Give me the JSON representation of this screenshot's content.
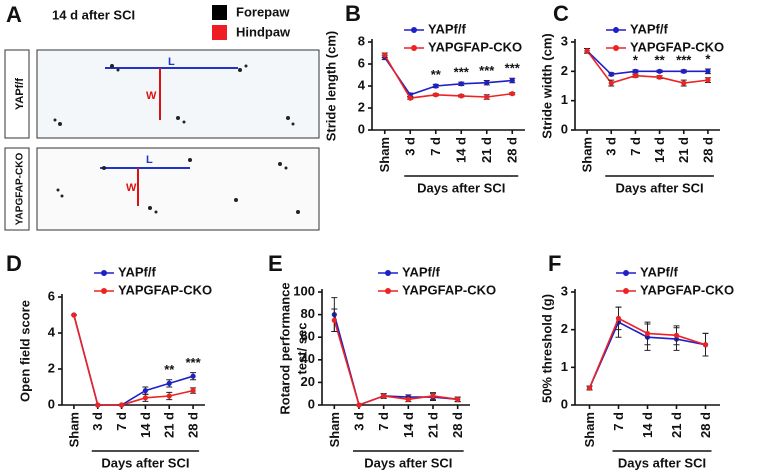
{
  "panel_a": {
    "panel_label": "A",
    "title": "14 d after SCI",
    "legend": [
      {
        "name": "Forepaw",
        "color": "#000000"
      },
      {
        "name": "Hindpaw",
        "color": "#ee1c24"
      }
    ],
    "rows": [
      {
        "label": "YAPf/f",
        "length_label": "L",
        "width_label": "W"
      },
      {
        "label": "YAPGFAP-CKO",
        "length_label": "L",
        "width_label": "W"
      }
    ]
  },
  "chart_data": [
    {
      "type": "line",
      "panel_label": "B",
      "ylabel": "Stride length (cm)",
      "xlabel": "Days after SCI",
      "categories": [
        "Sham",
        "3 d",
        "7 d",
        "14 d",
        "21 d",
        "28 d"
      ],
      "series": [
        {
          "name": "YAPf/f",
          "color": "#1f1fc8",
          "values": [
            6.6,
            3.2,
            4.0,
            4.2,
            4.3,
            4.5
          ],
          "errors": [
            0.2,
            0.15,
            0.15,
            0.15,
            0.2,
            0.2
          ]
        },
        {
          "name": "YAPGFAP-CKO",
          "color": "#ee2222",
          "values": [
            6.8,
            2.9,
            3.2,
            3.1,
            3.0,
            3.3
          ],
          "errors": [
            0.2,
            0.1,
            0.1,
            0.1,
            0.2,
            0.1
          ]
        }
      ],
      "ylim": [
        0,
        8
      ],
      "yticks": [
        0,
        2,
        4,
        6,
        8
      ],
      "annotations": [
        {
          "x": "7 d",
          "text": "**"
        },
        {
          "x": "14 d",
          "text": "***"
        },
        {
          "x": "21 d",
          "text": "***"
        },
        {
          "x": "28 d",
          "text": "***"
        }
      ]
    },
    {
      "type": "line",
      "panel_label": "C",
      "ylabel": "Stride width (cm)",
      "xlabel": "Days after SCI",
      "categories": [
        "Sham",
        "3 d",
        "7 d",
        "14 d",
        "21 d",
        "28 d"
      ],
      "series": [
        {
          "name": "YAPf/f",
          "color": "#1f1fc8",
          "values": [
            2.7,
            1.9,
            2.0,
            2.0,
            2.0,
            2.0
          ],
          "errors": [
            0.08,
            0.05,
            0.05,
            0.04,
            0.05,
            0.08
          ]
        },
        {
          "name": "YAPGFAP-CKO",
          "color": "#ee2222",
          "values": [
            2.7,
            1.6,
            1.85,
            1.8,
            1.6,
            1.7
          ],
          "errors": [
            0.08,
            0.1,
            0.05,
            0.05,
            0.1,
            0.08
          ]
        }
      ],
      "ylim": [
        0,
        3
      ],
      "yticks": [
        0,
        1,
        2,
        3
      ],
      "annotations": [
        {
          "x": "7 d",
          "text": "*"
        },
        {
          "x": "14 d",
          "text": "**"
        },
        {
          "x": "21 d",
          "text": "***"
        },
        {
          "x": "28 d",
          "text": "*"
        }
      ]
    },
    {
      "type": "line",
      "panel_label": "D",
      "ylabel": "Open field score",
      "xlabel": "Days after SCI",
      "categories": [
        "Sham",
        "3 d",
        "7 d",
        "14 d",
        "21 d",
        "28 d"
      ],
      "series": [
        {
          "name": "YAPf/f",
          "color": "#1f1fc8",
          "values": [
            5,
            0,
            0,
            0.8,
            1.2,
            1.6
          ],
          "errors": [
            0,
            0,
            0,
            0.2,
            0.2,
            0.2
          ]
        },
        {
          "name": "YAPGFAP-CKO",
          "color": "#ee2222",
          "values": [
            5,
            0,
            0,
            0.4,
            0.5,
            0.8
          ],
          "errors": [
            0,
            0,
            0,
            0.2,
            0.2,
            0.15
          ]
        }
      ],
      "ylim": [
        0,
        6
      ],
      "yticks": [
        0,
        2,
        4,
        6
      ],
      "annotations": [
        {
          "x": "21 d",
          "text": "**"
        },
        {
          "x": "28 d",
          "text": "***"
        }
      ]
    },
    {
      "type": "line",
      "panel_label": "E",
      "ylabel": [
        "Rotarod performance",
        "test/ sec"
      ],
      "xlabel": "Days after SCI",
      "categories": [
        "Sham",
        "3 d",
        "7 d",
        "14 d",
        "21 d",
        "28 d"
      ],
      "series": [
        {
          "name": "YAPf/f",
          "color": "#1f1fc8",
          "values": [
            80,
            0,
            8,
            7,
            7,
            5
          ],
          "errors": [
            15,
            0,
            2,
            2,
            3,
            2
          ]
        },
        {
          "name": "YAPGFAP-CKO",
          "color": "#ee2222",
          "values": [
            75,
            0,
            8,
            5,
            8,
            5
          ],
          "errors": [
            10,
            0,
            2,
            2,
            3,
            2
          ]
        }
      ],
      "ylim": [
        0,
        100
      ],
      "yticks": [
        0,
        20,
        40,
        60,
        80,
        100
      ]
    },
    {
      "type": "line",
      "panel_label": "F",
      "ylabel": "50% threshold (g)",
      "xlabel": "Days after SCI",
      "categories": [
        "Sham",
        "7 d",
        "14 d",
        "21 d",
        "28 d"
      ],
      "series": [
        {
          "name": "YAPf/f",
          "color": "#1f1fc8",
          "values": [
            0.45,
            2.2,
            1.8,
            1.75,
            1.6
          ],
          "errors": [
            0.05,
            0.4,
            0.35,
            0.3,
            0.3
          ]
        },
        {
          "name": "YAPGFAP-CKO",
          "color": "#ee2222",
          "values": [
            0.45,
            2.3,
            1.9,
            1.85,
            1.6
          ],
          "errors": [
            0.05,
            0.3,
            0.3,
            0.25,
            0.3
          ]
        }
      ],
      "ylim": [
        0,
        3
      ],
      "yticks": [
        0,
        1,
        2,
        3
      ]
    }
  ]
}
